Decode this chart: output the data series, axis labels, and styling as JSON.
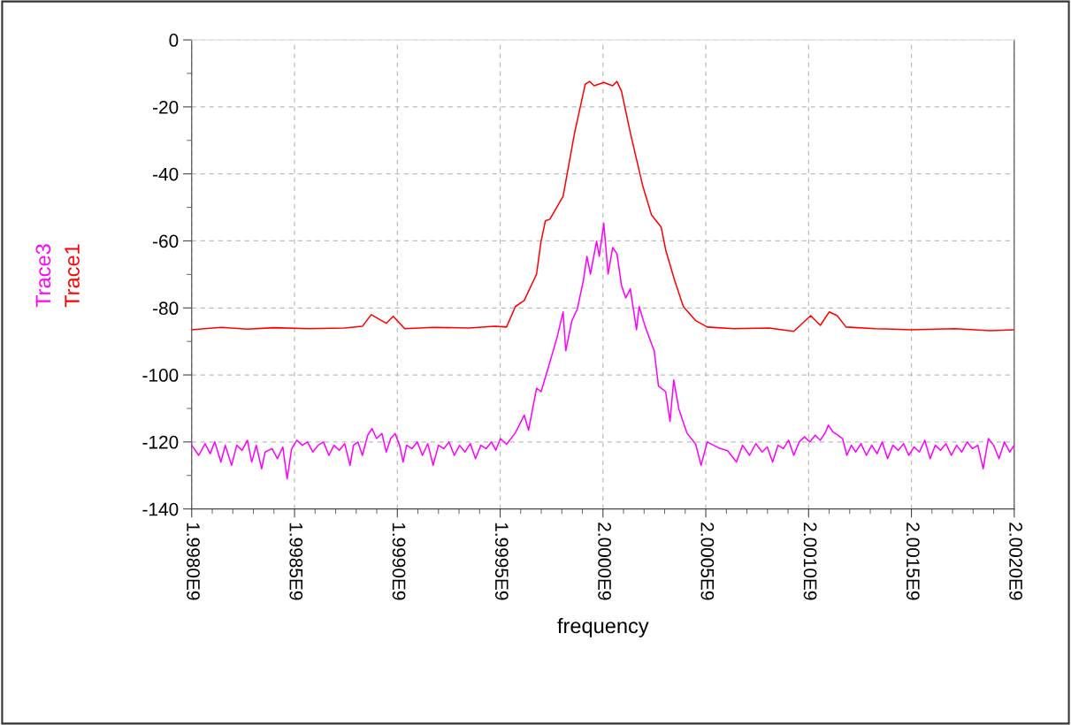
{
  "chart_data": {
    "type": "line",
    "xlabel": "frequency",
    "legend": "left",
    "grid": true,
    "line_style": "solid",
    "marker": "none",
    "xlim": [
      1998000000,
      2002000000
    ],
    "xticks": [
      {
        "value": 1998000000,
        "label": "1.9980E9"
      },
      {
        "value": 1998500000,
        "label": "1.9985E9"
      },
      {
        "value": 1999000000,
        "label": "1.9990E9"
      },
      {
        "value": 1999500000,
        "label": "1.9995E9"
      },
      {
        "value": 2000000000,
        "label": "2.0000E9"
      },
      {
        "value": 2000500000,
        "label": "2.0005E9"
      },
      {
        "value": 2001000000,
        "label": "2.0010E9"
      },
      {
        "value": 2001500000,
        "label": "2.0015E9"
      },
      {
        "value": 2002000000,
        "label": "2.0020E9"
      }
    ],
    "ylim": [
      -140,
      0
    ],
    "yticks": [
      -140,
      -120,
      -100,
      -80,
      -60,
      -40,
      -20,
      0
    ],
    "series": [
      {
        "name": "Trace1",
        "color": "#ff0000",
        "x": [
          1998000000,
          1998142000,
          1998271000,
          1998400000,
          1998572000,
          1998744000,
          1998830000,
          1998873000,
          1998946000,
          1998980000,
          1999036000,
          1999174000,
          1999346000,
          1999475000,
          1999531000,
          1999574000,
          1999617000,
          1999677000,
          1999699000,
          1999720000,
          1999742000,
          1999806000,
          1999862000,
          1999914000,
          1999935000,
          1999957000,
          2000004000,
          2000047000,
          2000068000,
          2000090000,
          2000133000,
          2000193000,
          2000236000,
          2000283000,
          2000305000,
          2000348000,
          2000391000,
          2000451000,
          2000507000,
          2000636000,
          2000808000,
          2000928000,
          2001010000,
          2001057000,
          2001100000,
          2001139000,
          2001182000,
          2001324000,
          2001496000,
          2001711000,
          2001883000,
          2002000000
        ],
        "values": [
          -86.5,
          -85.8,
          -86.3,
          -85.9,
          -86.2,
          -86,
          -85.5,
          -82,
          -84.6,
          -82.5,
          -86.2,
          -85.8,
          -86,
          -85.5,
          -85.7,
          -79.6,
          -77.8,
          -69.9,
          -60.1,
          -54,
          -53.5,
          -46.7,
          -27.7,
          -13.2,
          -12.4,
          -13.7,
          -12.7,
          -13.7,
          -12.4,
          -15.3,
          -27.7,
          -43.5,
          -52.2,
          -55.9,
          -62.7,
          -71.7,
          -79.6,
          -83.8,
          -85.7,
          -86.2,
          -86,
          -87,
          -82.3,
          -85.2,
          -81.2,
          -82.3,
          -85.7,
          -86.2,
          -86.5,
          -86.2,
          -86.8,
          -86.5
        ]
      },
      {
        "name": "Trace3",
        "color": "#ff00ff",
        "x": [
          1998000000,
          1998034000,
          1998065000,
          1998090000,
          1998112000,
          1998142000,
          1998163000,
          1998194000,
          1998219000,
          1998245000,
          1998271000,
          1998292000,
          1998314000,
          1998340000,
          1998357000,
          1998391000,
          1998417000,
          1998443000,
          1998464000,
          1998486000,
          1998512000,
          1998538000,
          1998563000,
          1998589000,
          1998615000,
          1998641000,
          1998667000,
          1998692000,
          1998718000,
          1998744000,
          1998770000,
          1998787000,
          1998808000,
          1998830000,
          1998856000,
          1998877000,
          1998899000,
          1998925000,
          1998946000,
          1998968000,
          1998989000,
          1999011000,
          1999028000,
          1999045000,
          1999071000,
          1999097000,
          1999122000,
          1999148000,
          1999174000,
          1999200000,
          1999226000,
          1999251000,
          1999277000,
          1999303000,
          1999329000,
          1999355000,
          1999380000,
          1999406000,
          1999432000,
          1999458000,
          1999479000,
          1999501000,
          1999531000,
          1999574000,
          1999617000,
          1999638000,
          1999677000,
          1999699000,
          1999733000,
          1999776000,
          1999806000,
          1999819000,
          1999849000,
          1999875000,
          1999905000,
          1999922000,
          1999939000,
          1999969000,
          1999982000,
          2000004000,
          2000025000,
          2000047000,
          2000068000,
          2000090000,
          2000111000,
          2000133000,
          2000163000,
          2000176000,
          2000206000,
          2000249000,
          2000270000,
          2000305000,
          2000326000,
          2000344000,
          2000369000,
          2000408000,
          2000451000,
          2000477000,
          2000507000,
          2000563000,
          2000606000,
          2000649000,
          2000679000,
          2000713000,
          2000743000,
          2000774000,
          2000799000,
          2000825000,
          2000851000,
          2000877000,
          2000903000,
          2000928000,
          2000954000,
          2000980000,
          2001006000,
          2001032000,
          2001057000,
          2001083000,
          2001096000,
          2001118000,
          2001143000,
          2001165000,
          2001186000,
          2001208000,
          2001229000,
          2001255000,
          2001281000,
          2001307000,
          2001333000,
          2001358000,
          2001384000,
          2001410000,
          2001436000,
          2001462000,
          2001487000,
          2001513000,
          2001539000,
          2001565000,
          2001591000,
          2001616000,
          2001642000,
          2001668000,
          2001694000,
          2001720000,
          2001745000,
          2001771000,
          2001797000,
          2001823000,
          2001849000,
          2001874000,
          2001900000,
          2001926000,
          2001952000,
          2001978000,
          2002000000
        ],
        "values": [
          -121,
          -124,
          -120.5,
          -123.5,
          -120,
          -126,
          -121,
          -127,
          -121,
          -122.5,
          -119.5,
          -126,
          -121,
          -128,
          -123,
          -122,
          -125,
          -121.5,
          -131,
          -122,
          -119.5,
          -121,
          -120,
          -123,
          -121,
          -120,
          -124,
          -121,
          -122.5,
          -120.5,
          -127,
          -121,
          -120,
          -124,
          -118,
          -116,
          -119,
          -117.5,
          -123,
          -119,
          -117.5,
          -121,
          -126,
          -121,
          -122,
          -120,
          -124,
          -120.5,
          -127,
          -121,
          -122,
          -120,
          -124,
          -121,
          -123,
          -120.5,
          -125,
          -121,
          -122,
          -120,
          -122.5,
          -119,
          -120.7,
          -117.3,
          -112,
          -116.5,
          -104,
          -105,
          -98,
          -89,
          -81.2,
          -92.8,
          -83.8,
          -80.4,
          -71.7,
          -64.6,
          -69.9,
          -60.1,
          -64.6,
          -54.8,
          -69.9,
          -62,
          -63.8,
          -73.3,
          -77,
          -74.3,
          -86.5,
          -79.6,
          -85.7,
          -92.8,
          -103.3,
          -105,
          -113.9,
          -101.5,
          -110.2,
          -117.3,
          -120.7,
          -127,
          -120,
          -121.8,
          -122.6,
          -126,
          -121,
          -124,
          -120.5,
          -123,
          -121.5,
          -126,
          -121,
          -122,
          -119.5,
          -124,
          -120,
          -118.5,
          -120,
          -118,
          -119.5,
          -117,
          -115,
          -117,
          -118,
          -119,
          -124,
          -121,
          -123,
          -120.5,
          -124,
          -121,
          -123.5,
          -120,
          -125,
          -121,
          -122.5,
          -120.5,
          -124,
          -121.5,
          -123,
          -119.5,
          -125,
          -121,
          -122.5,
          -120.5,
          -124,
          -121,
          -123,
          -120,
          -122,
          -121,
          -128,
          -119,
          -121,
          -125,
          -120,
          -123,
          -121
        ]
      }
    ]
  }
}
